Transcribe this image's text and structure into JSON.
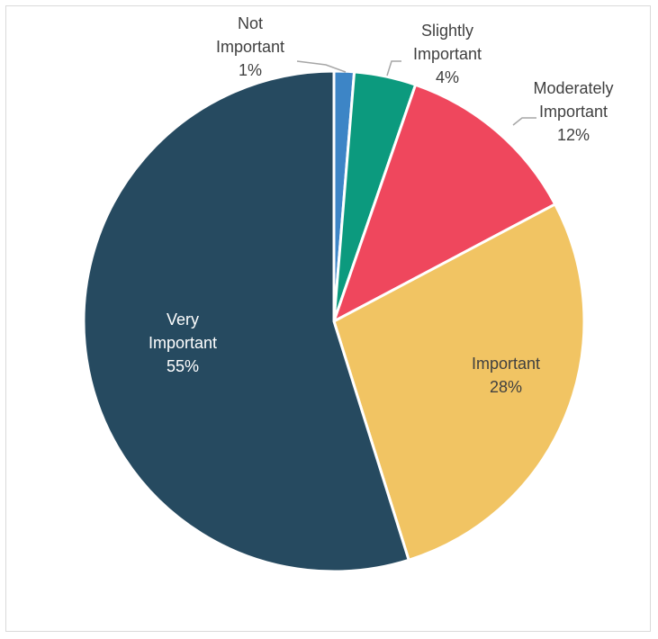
{
  "chart_data": {
    "type": "pie",
    "title": "",
    "slices": [
      {
        "name": "Not Important",
        "label_lines": [
          "Not",
          "Important"
        ],
        "value": 1.3,
        "display": "1%",
        "color": "#3d85c6"
      },
      {
        "name": "Slightly Important",
        "label_lines": [
          "Slightly",
          "Important"
        ],
        "value": 4,
        "display": "4%",
        "color": "#0c9a7e"
      },
      {
        "name": "Moderately Important",
        "label_lines": [
          "Moderately",
          "Important"
        ],
        "value": 12,
        "display": "12%",
        "color": "#ef475d"
      },
      {
        "name": "Important",
        "label_lines": [
          "Important"
        ],
        "value": 28,
        "display": "28%",
        "color": "#f1c463"
      },
      {
        "name": "Very Important",
        "label_lines": [
          "Very",
          "Important"
        ],
        "value": 55,
        "display": "55%",
        "color": "#264a60"
      }
    ],
    "legend": "none",
    "labels": "data-labels"
  }
}
